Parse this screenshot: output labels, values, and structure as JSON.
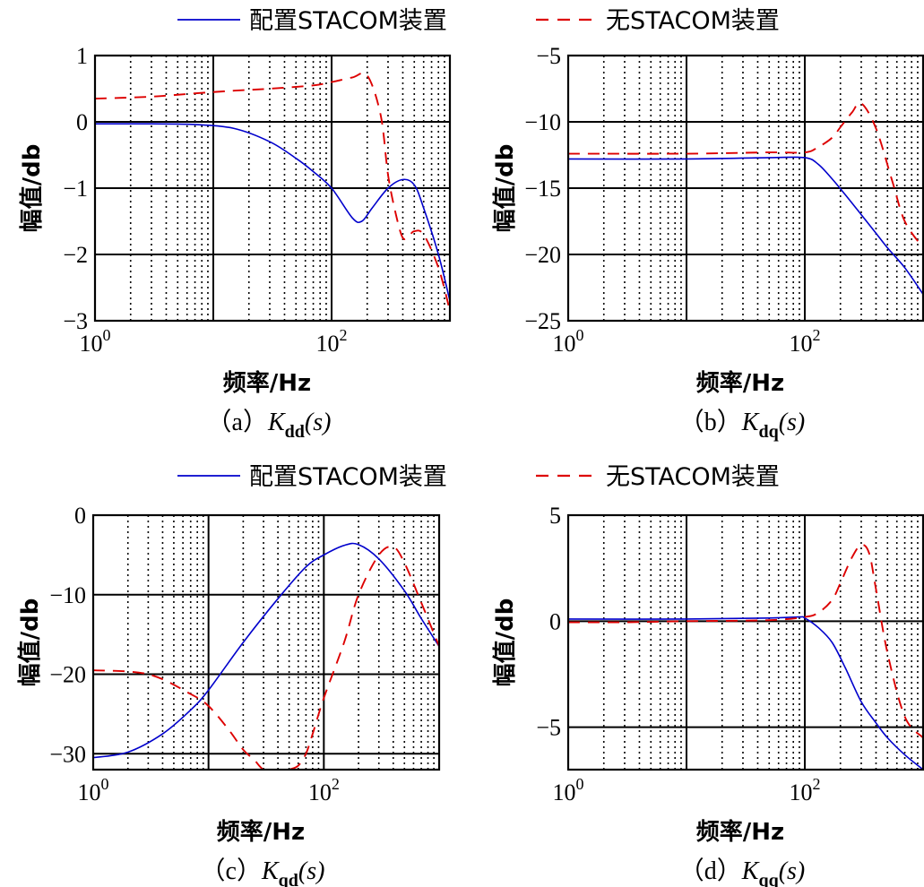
{
  "legends": [
    {
      "series": [
        {
          "name": "配置STACOM装置",
          "color": "#0000cc",
          "style": "solid"
        },
        {
          "name": "无STACOM装置",
          "color": "#dd0000",
          "style": "dashed"
        }
      ]
    },
    {
      "series": [
        {
          "name": "配置STACOM装置",
          "color": "#0000cc",
          "style": "solid"
        },
        {
          "name": "无STACOM装置",
          "color": "#dd0000",
          "style": "dashed"
        }
      ]
    }
  ],
  "chart_data": [
    {
      "id": "a",
      "type": "line",
      "xscale": "log",
      "xlim": [
        1,
        1000
      ],
      "ylim": [
        -3,
        1
      ],
      "xticks": [
        1,
        100
      ],
      "xtick_labels": [
        "10^0",
        "10^2"
      ],
      "yticks": [
        1,
        0,
        -1,
        -2,
        -3
      ],
      "ytick_labels": [
        "1",
        "0",
        "−1",
        "−2",
        "−3"
      ],
      "xlabel": "频率/Hz",
      "ylabel": "幅值/db",
      "caption": {
        "prefix": "（a）",
        "sym": "K",
        "sub": "dd",
        "suffix": "(s)"
      },
      "grid": true,
      "series": [
        {
          "name": "配置STACOM装置",
          "x": [
            1,
            3,
            7,
            15,
            30,
            50,
            70,
            100,
            150,
            180,
            220,
            300,
            400,
            500,
            600,
            800,
            1000
          ],
          "y": [
            -0.03,
            -0.03,
            -0.04,
            -0.1,
            -0.3,
            -0.55,
            -0.75,
            -1.0,
            -1.45,
            -1.5,
            -1.3,
            -1.0,
            -0.87,
            -0.95,
            -1.3,
            -2.0,
            -2.7
          ]
        },
        {
          "name": "无STACOM装置",
          "x": [
            1,
            3,
            7,
            15,
            30,
            70,
            100,
            150,
            200,
            260,
            300,
            350,
            400,
            450,
            500,
            600,
            800,
            1000
          ],
          "y": [
            0.35,
            0.38,
            0.43,
            0.47,
            0.5,
            0.55,
            0.6,
            0.67,
            0.7,
            0.1,
            -0.8,
            -1.4,
            -1.75,
            -1.72,
            -1.65,
            -1.7,
            -2.2,
            -2.85
          ]
        }
      ]
    },
    {
      "id": "b",
      "type": "line",
      "xscale": "log",
      "xlim": [
        1,
        1000
      ],
      "ylim": [
        -25,
        -5
      ],
      "xticks": [
        1,
        100
      ],
      "xtick_labels": [
        "10^0",
        "10^2"
      ],
      "yticks": [
        -5,
        -10,
        -15,
        -20,
        -25
      ],
      "ytick_labels": [
        "−5",
        "−10",
        "−15",
        "−20",
        "−25"
      ],
      "xlabel": "频率/Hz",
      "ylabel": "幅值/db",
      "caption": {
        "prefix": "（b）",
        "sym": "K",
        "sub": "dq",
        "suffix": "(s)"
      },
      "grid": true,
      "series": [
        {
          "name": "配置STACOM装置",
          "x": [
            1,
            10,
            50,
            100,
            130,
            170,
            220,
            300,
            400,
            500,
            700,
            1000
          ],
          "y": [
            -12.8,
            -12.8,
            -12.7,
            -12.7,
            -13.2,
            -14.3,
            -15.5,
            -17.0,
            -18.4,
            -19.5,
            -21.0,
            -23.0
          ]
        },
        {
          "name": "无STACOM装置",
          "x": [
            1,
            10,
            50,
            100,
            130,
            170,
            200,
            250,
            300,
            400,
            550,
            700,
            1000
          ],
          "y": [
            -12.4,
            -12.4,
            -12.3,
            -12.3,
            -11.9,
            -11.2,
            -10.4,
            -9.3,
            -8.6,
            -10.5,
            -14.5,
            -17.5,
            -19.5
          ]
        }
      ]
    },
    {
      "id": "c",
      "type": "line",
      "xscale": "log",
      "xlim": [
        1,
        1000
      ],
      "ylim": [
        -32,
        0
      ],
      "xticks": [
        1,
        100
      ],
      "xtick_labels": [
        "10^0",
        "10^2"
      ],
      "yticks": [
        0,
        -10,
        -20,
        -30
      ],
      "ytick_labels": [
        "0",
        "−10",
        "−20",
        "−30"
      ],
      "xlabel": "频率/Hz",
      "ylabel": "幅值/db",
      "caption": {
        "prefix": "（c）",
        "sym": "K",
        "sub": "qd",
        "suffix": "(s)"
      },
      "grid": true,
      "series": [
        {
          "name": "配置STACOM装置",
          "x": [
            1,
            2,
            4,
            7,
            10,
            20,
            40,
            70,
            100,
            150,
            200,
            300,
            500,
            700,
            1000
          ],
          "y": [
            -30.5,
            -29.8,
            -27.5,
            -24.5,
            -22.0,
            -16.0,
            -10.5,
            -6.5,
            -5.0,
            -3.8,
            -3.7,
            -5.5,
            -9.5,
            -13.0,
            -16.5
          ]
        },
        {
          "name": "无STACOM装置",
          "x": [
            1,
            3,
            7,
            10,
            15,
            20,
            25,
            30,
            40,
            50,
            60,
            70,
            80,
            100,
            150,
            200,
            300,
            400,
            500,
            700,
            1000
          ],
          "y": [
            -19.5,
            -20.0,
            -22.5,
            -24.0,
            -27.0,
            -29.5,
            -30.8,
            -32.0,
            -32.5,
            -32.0,
            -31.5,
            -30.0,
            -27.5,
            -23.0,
            -16.0,
            -10.0,
            -5.0,
            -4.0,
            -6.0,
            -11.0,
            -16.5
          ]
        }
      ]
    },
    {
      "id": "d",
      "type": "line",
      "xscale": "log",
      "xlim": [
        1,
        1000
      ],
      "ylim": [
        -7,
        5
      ],
      "xticks": [
        1,
        100
      ],
      "xtick_labels": [
        "10^0",
        "10^2"
      ],
      "yticks": [
        5,
        0,
        -5
      ],
      "ytick_labels": [
        "5",
        "0",
        "−5"
      ],
      "xlabel": "频率/Hz",
      "ylabel": "幅值/db",
      "caption": {
        "prefix": "（d）",
        "sym": "K",
        "sub": "qq",
        "suffix": "(s)"
      },
      "grid": true,
      "series": [
        {
          "name": "配置STACOM装置",
          "x": [
            1,
            10,
            50,
            90,
            100,
            130,
            170,
            220,
            300,
            400,
            500,
            700,
            1000
          ],
          "y": [
            0.1,
            0.1,
            0.15,
            0.2,
            0.15,
            -0.3,
            -1.0,
            -2.2,
            -3.8,
            -4.8,
            -5.5,
            -6.3,
            -7.0
          ]
        },
        {
          "name": "无STACOM装置",
          "x": [
            1,
            3,
            10,
            50,
            100,
            130,
            170,
            200,
            250,
            300,
            350,
            400,
            500,
            700,
            1000
          ],
          "y": [
            -0.05,
            -0.05,
            0.0,
            0.05,
            0.2,
            0.4,
            1.0,
            1.8,
            3.0,
            3.6,
            3.2,
            1.5,
            -1.5,
            -4.5,
            -5.5
          ]
        }
      ]
    }
  ]
}
